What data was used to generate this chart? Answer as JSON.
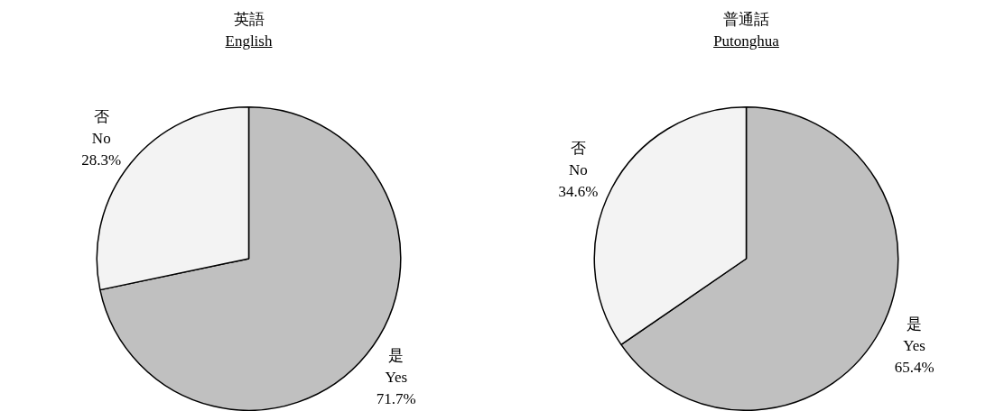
{
  "chart_data": [
    {
      "type": "pie",
      "title": "英語",
      "subtitle": "English",
      "categories": [
        "是\nYes",
        "否\nNo"
      ],
      "values": [
        71.7,
        28.3
      ],
      "value_labels": [
        "71.7%",
        "28.3%"
      ],
      "colors": [
        "#c0c0c0",
        "#f3f3f3"
      ]
    },
    {
      "type": "pie",
      "title": "普通話",
      "subtitle": "Putonghua",
      "categories": [
        "是\nYes",
        "否\nNo"
      ],
      "values": [
        65.4,
        34.6
      ],
      "value_labels": [
        "65.4%",
        "34.6%"
      ],
      "colors": [
        "#c0c0c0",
        "#f3f3f3"
      ]
    }
  ]
}
